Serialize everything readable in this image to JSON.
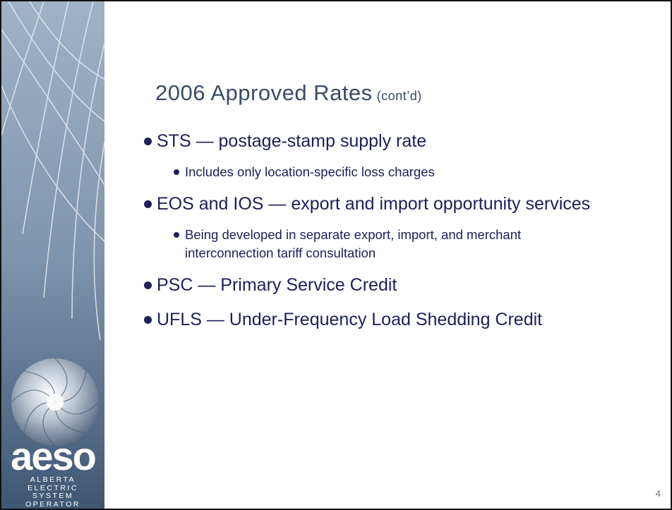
{
  "slide": {
    "title": "2006 Approved Rates",
    "title_suffix": "(cont’d)",
    "bullets": [
      {
        "text": "STS — postage-stamp supply rate",
        "subs": [
          "Includes only location-specific loss charges"
        ]
      },
      {
        "text": "EOS and IOS — export and import opportunity services",
        "subs": [
          "Being developed in separate export, import, and merchant interconnection tariff consultation"
        ]
      },
      {
        "text": "PSC — Primary Service Credit",
        "subs": []
      },
      {
        "text": "UFLS — Under-Frequency Load Shedding Credit",
        "subs": []
      }
    ],
    "page_number": "4"
  },
  "logo": {
    "name": "aeso",
    "lines": [
      "ALBERTA",
      "ELECTRIC",
      "SYSTEM",
      "OPERATOR"
    ]
  }
}
